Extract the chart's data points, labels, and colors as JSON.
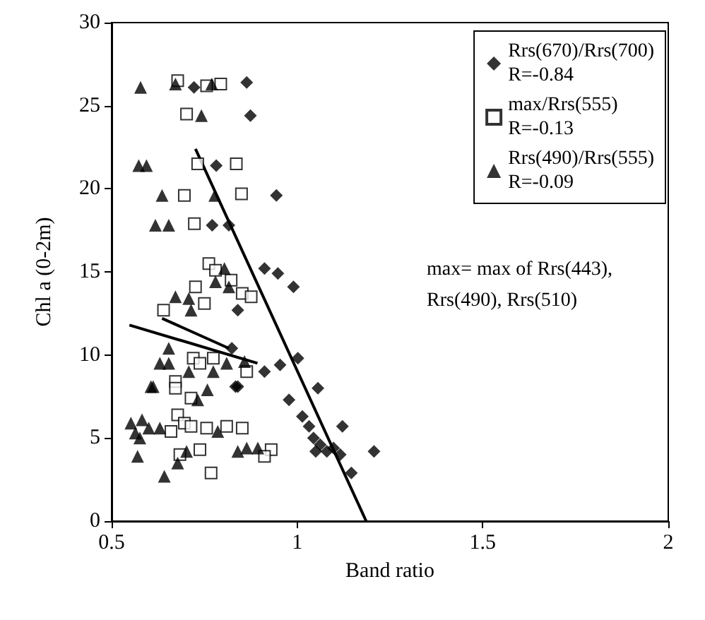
{
  "chart_data": {
    "type": "scatter",
    "xlabel": "Band ratio",
    "ylabel": "Chl a (0-2m)",
    "xlim": [
      0.5,
      2
    ],
    "xticks": [
      0.5,
      1,
      1.5,
      2
    ],
    "ylim": [
      0,
      30
    ],
    "yticks": [
      0,
      5,
      10,
      15,
      20,
      25,
      30
    ],
    "grid": false,
    "legend": "top right",
    "annotations": [
      "max= max of Rrs(443),\nRrs(490), Rrs(510)"
    ],
    "series": [
      {
        "name": "Rrs(670)/Rrs(700)\nR=-0.84",
        "color": "#000000",
        "marker": "diamond",
        "x": [
          0.722,
          0.864,
          0.874,
          0.782,
          0.944,
          0.771,
          0.816,
          0.912,
          0.948,
          0.99,
          0.84,
          0.824,
          0.912,
          0.954,
          1.002,
          0.84,
          1.056,
          0.834,
          0.978,
          1.014,
          1.032,
          1.044,
          1.062,
          1.08,
          1.098,
          1.116,
          1.122,
          1.146,
          1.05,
          1.207
        ],
        "values": [
          26.1,
          26.4,
          24.4,
          21.4,
          19.6,
          17.8,
          17.8,
          15.2,
          14.9,
          14.1,
          12.7,
          10.4,
          9.0,
          9.4,
          9.8,
          8.1,
          8.0,
          8.1,
          7.3,
          6.3,
          5.7,
          5.0,
          4.6,
          4.2,
          4.4,
          4.0,
          5.7,
          2.9,
          4.2,
          4.2
        ]
      },
      {
        "name": "max/Rrs(555)\nR=-0.13",
        "color": "#000000",
        "marker": "square",
        "x": [
          0.678,
          0.756,
          0.794,
          0.702,
          0.732,
          0.836,
          0.696,
          0.85,
          0.723,
          0.762,
          0.78,
          0.726,
          0.822,
          0.852,
          0.876,
          0.75,
          0.64,
          0.72,
          0.774,
          0.864,
          0.672,
          0.738,
          0.678,
          0.696,
          0.66,
          0.714,
          0.756,
          0.81,
          0.852,
          0.93,
          0.912,
          0.738,
          0.684,
          0.768,
          0.672,
          0.714
        ],
        "values": [
          26.5,
          26.2,
          26.3,
          24.5,
          21.5,
          21.5,
          19.6,
          19.7,
          17.9,
          15.5,
          15.1,
          14.1,
          14.5,
          13.7,
          13.5,
          13.1,
          12.7,
          9.8,
          9.8,
          9.0,
          8.4,
          9.5,
          6.4,
          5.9,
          5.4,
          5.7,
          5.6,
          5.7,
          5.6,
          4.3,
          3.9,
          4.3,
          4.0,
          2.9,
          8.0,
          7.4
        ]
      },
      {
        "name": "Rrs(490)/Rrs(555)\nR=-0.09",
        "color": "#000000",
        "marker": "triangle",
        "x": [
          0.578,
          0.672,
          0.77,
          0.742,
          0.573,
          0.594,
          0.636,
          0.778,
          0.618,
          0.654,
          0.804,
          0.78,
          0.816,
          0.672,
          0.708,
          0.714,
          0.654,
          0.63,
          0.654,
          0.708,
          0.774,
          0.81,
          0.858,
          0.612,
          0.758,
          0.552,
          0.582,
          0.6,
          0.63,
          0.564,
          0.576,
          0.57,
          0.642,
          0.678,
          0.702,
          0.732,
          0.786,
          0.84,
          0.864,
          0.894,
          0.606
        ],
        "values": [
          26.1,
          26.3,
          26.3,
          24.4,
          21.4,
          21.4,
          19.6,
          19.6,
          17.8,
          17.8,
          15.2,
          14.4,
          14.1,
          13.5,
          13.4,
          12.7,
          10.4,
          9.5,
          9.5,
          9.0,
          9.0,
          9.5,
          9.6,
          8.1,
          7.9,
          5.9,
          6.1,
          5.6,
          5.6,
          5.3,
          5.0,
          3.9,
          2.7,
          3.5,
          4.2,
          7.3,
          5.4,
          4.2,
          4.4,
          4.4,
          8.1
        ]
      },
      {
        "type": "line",
        "color": "#000000",
        "marker": "none",
        "x": [
          0.726,
          1.186
        ],
        "values": [
          22.4,
          0
        ]
      },
      {
        "type": "line",
        "color": "#000000",
        "marker": "none",
        "x": [
          0.548,
          0.893
        ],
        "values": [
          11.8,
          9.5
        ]
      },
      {
        "type": "line",
        "color": "#000000",
        "marker": "none",
        "x": [
          0.636,
          0.816
        ],
        "values": [
          12.2,
          10.4
        ]
      }
    ]
  }
}
